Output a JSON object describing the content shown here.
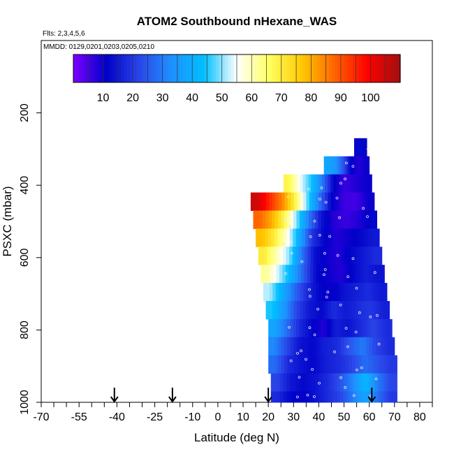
{
  "chart_data": {
    "type": "heatmap",
    "title": "ATOM2 Southbound nHexane_WAS",
    "flights_note": "Flts: 2,3,4,5,6",
    "dates_note": "MMDD: 0129,0201,0203,0205,0210",
    "xlabel": "Latitude (deg N)",
    "ylabel": "PSXC (mbar)",
    "xlim": [
      -70,
      85
    ],
    "ylim": [
      1000,
      0
    ],
    "x_tick_values": [
      -70,
      -55,
      -40,
      -25,
      -10,
      0,
      10,
      20,
      30,
      40,
      50,
      60,
      70,
      80
    ],
    "x_tick_labels": [
      "-70",
      "-55",
      "-40",
      "-25",
      "-10",
      "0",
      "10",
      "20",
      "30",
      "40",
      "50",
      "60",
      "70",
      "80"
    ],
    "y_tick_values": [
      200,
      400,
      600,
      800,
      1000
    ],
    "y_tick_labels": [
      "200",
      "400",
      "600",
      "800",
      "1000"
    ],
    "colorbar": {
      "min": 0,
      "max": 110,
      "tick_values": [
        10,
        20,
        30,
        40,
        50,
        60,
        70,
        80,
        90,
        100
      ],
      "tick_labels": [
        "10",
        "20",
        "30",
        "40",
        "50",
        "60",
        "70",
        "80",
        "90",
        "100"
      ],
      "colors": [
        "#7f00ff",
        "#0000c8",
        "#2a44e8",
        "#1e90ff",
        "#00c0ff",
        "#ffffff",
        "#ffff60",
        "#ffc800",
        "#ff6400",
        "#ff0000",
        "#a01010"
      ]
    },
    "arrow_latitudes": [
      -41,
      -18,
      20,
      61
    ],
    "pressure_bands": [
      {
        "p_top": 270,
        "p_bottom": 320,
        "lat_min": 54,
        "lat_max": 59,
        "values": [
          12
        ]
      },
      {
        "p_top": 320,
        "p_bottom": 370,
        "lat_min": 42,
        "lat_max": 60,
        "values": [
          38,
          35,
          25,
          12,
          8,
          10
        ]
      },
      {
        "p_top": 370,
        "p_bottom": 420,
        "lat_min": 26,
        "lat_max": 61,
        "values": [
          68,
          55,
          45,
          30,
          12,
          6,
          8,
          10
        ]
      },
      {
        "p_top": 420,
        "p_bottom": 470,
        "lat_min": 13,
        "lat_max": 62,
        "values": [
          105,
          95,
          85,
          70,
          50,
          30,
          12,
          6,
          5,
          10
        ]
      },
      {
        "p_top": 470,
        "p_bottom": 520,
        "lat_min": 14,
        "lat_max": 63,
        "values": [
          88,
          80,
          68,
          50,
          30,
          14,
          8,
          6,
          8,
          12
        ]
      },
      {
        "p_top": 520,
        "p_bottom": 570,
        "lat_min": 15,
        "lat_max": 64,
        "values": [
          78,
          70,
          58,
          40,
          20,
          12,
          8,
          10,
          12,
          15
        ]
      },
      {
        "p_top": 570,
        "p_bottom": 620,
        "lat_min": 16,
        "lat_max": 65,
        "values": [
          70,
          60,
          50,
          30,
          14,
          10,
          8,
          12,
          15,
          18
        ]
      },
      {
        "p_top": 620,
        "p_bottom": 670,
        "lat_min": 17,
        "lat_max": 66,
        "values": [
          62,
          52,
          40,
          25,
          12,
          10,
          8,
          12,
          16,
          14
        ]
      },
      {
        "p_top": 670,
        "p_bottom": 720,
        "lat_min": 18,
        "lat_max": 67,
        "values": [
          52,
          40,
          28,
          18,
          12,
          10,
          14,
          16,
          18,
          15
        ]
      },
      {
        "p_top": 720,
        "p_bottom": 770,
        "lat_min": 19,
        "lat_max": 68,
        "values": [
          45,
          35,
          22,
          15,
          12,
          18,
          15,
          18,
          20,
          16
        ]
      },
      {
        "p_top": 770,
        "p_bottom": 820,
        "lat_min": 20,
        "lat_max": 69,
        "values": [
          38,
          28,
          18,
          12,
          8,
          16,
          14,
          18,
          22,
          18
        ]
      },
      {
        "p_top": 820,
        "p_bottom": 870,
        "lat_min": 20,
        "lat_max": 70,
        "values": [
          32,
          22,
          14,
          12,
          16,
          18,
          25,
          30,
          22,
          18
        ]
      },
      {
        "p_top": 870,
        "p_bottom": 920,
        "lat_min": 20,
        "lat_max": 71,
        "values": [
          28,
          18,
          14,
          12,
          16,
          18,
          22,
          28,
          24,
          20
        ]
      },
      {
        "p_top": 920,
        "p_bottom": 970,
        "lat_min": 21,
        "lat_max": 71,
        "values": [
          22,
          15,
          12,
          14,
          18,
          24,
          32,
          42,
          30,
          22
        ]
      },
      {
        "p_top": 970,
        "p_bottom": 1000,
        "lat_min": 21,
        "lat_max": 71,
        "values": [
          18,
          12,
          10,
          14,
          18,
          22,
          30,
          38,
          28,
          20
        ]
      }
    ]
  }
}
